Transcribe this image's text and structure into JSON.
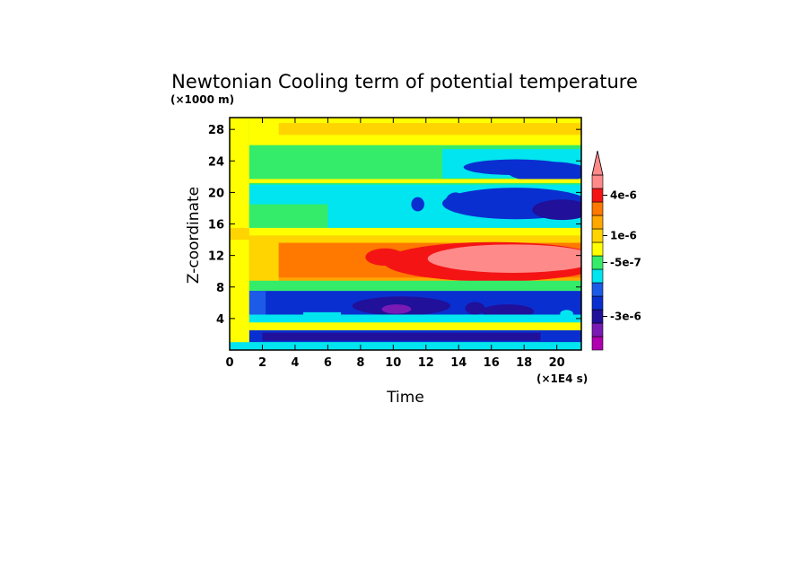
{
  "chart_data": {
    "type": "heatmap",
    "title": "Newtonian Cooling term of potential temperature",
    "xlabel": "Time",
    "ylabel": "Z-coordinate",
    "x_unit_note": "(×1E4 s)",
    "y_unit_note": "(×1000 m)",
    "xlim": [
      0,
      21.5
    ],
    "ylim": [
      0,
      29.5
    ],
    "x_ticks": [
      0,
      2,
      4,
      6,
      8,
      10,
      12,
      14,
      16,
      18,
      20
    ],
    "y_ticks": [
      4,
      8,
      12,
      16,
      20,
      24,
      28
    ],
    "colorbar": {
      "colors": [
        "#b000b0",
        "#7a1ab4",
        "#20109a",
        "#0a2fd0",
        "#1c5ae8",
        "#00e5ef",
        "#35ec6a",
        "#ffff00",
        "#ffd400",
        "#ffa800",
        "#ff7800",
        "#f41414",
        "#ff8a8a"
      ],
      "labels": [
        "4e-6",
        "1e-6",
        "-5e-7",
        "-3e-6"
      ],
      "label_bins": [
        11,
        8,
        6,
        2
      ],
      "extend": "max"
    },
    "field": {
      "bands": [
        {
          "z_range": [
            0,
            1
          ],
          "level": 5,
          "note": "cyan near surface"
        },
        {
          "z_range": [
            1,
            2.5
          ],
          "level": 2,
          "note": "navy minimum"
        },
        {
          "z_range": [
            2.5,
            3.5
          ],
          "level": 7,
          "note": "yellow"
        },
        {
          "z_range": [
            3.5,
            4.5
          ],
          "level": 5,
          "note": "cyan"
        },
        {
          "z_range": [
            4.5,
            7.5
          ],
          "level": 2,
          "note": "blue/navy band, purple core near t=10"
        },
        {
          "z_range": [
            7.5,
            9
          ],
          "level": 6,
          "note": "green"
        },
        {
          "z_range": [
            9,
            14.5
          ],
          "level": 11,
          "note": "orange/red, pink core after t=12"
        },
        {
          "z_range": [
            14.5,
            15.5
          ],
          "level": 7,
          "note": "yellow"
        },
        {
          "z_range": [
            15.5,
            21
          ],
          "level": 5,
          "note": "cyan, blue patches later"
        },
        {
          "z_range": [
            21,
            26
          ],
          "level": 6,
          "note": "green"
        },
        {
          "z_range": [
            26,
            29.5
          ],
          "level": 7,
          "note": "yellow top"
        }
      ]
    }
  }
}
